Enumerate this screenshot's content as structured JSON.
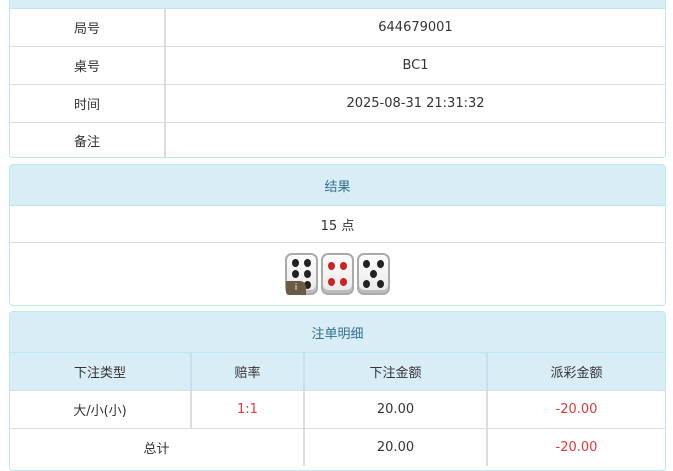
{
  "info": {
    "rows": [
      {
        "label": "局号",
        "value": "644679001"
      },
      {
        "label": "桌号",
        "value": "BC1"
      },
      {
        "label": "时间",
        "value": "2025-08-31 21:31:32"
      },
      {
        "label": "备注",
        "value": ""
      }
    ]
  },
  "result": {
    "title": "结果",
    "points": "15 点",
    "dice": [
      6,
      4,
      5
    ],
    "dice_badge": "i"
  },
  "bets": {
    "title": "注单明细",
    "headers": [
      "下注类型",
      "赔率",
      "下注金额",
      "派彩金额"
    ],
    "row": {
      "type": "大/小(小)",
      "odds": "1:1",
      "amount": "20.00",
      "payout": "-20.00"
    },
    "total": {
      "label": "总计",
      "amount": "20.00",
      "payout": "-20.00"
    }
  },
  "colors": {
    "header_bg": "#d9edf7",
    "header_text": "#31708f",
    "border": "#bce8f1",
    "negative": "#e4393c"
  }
}
